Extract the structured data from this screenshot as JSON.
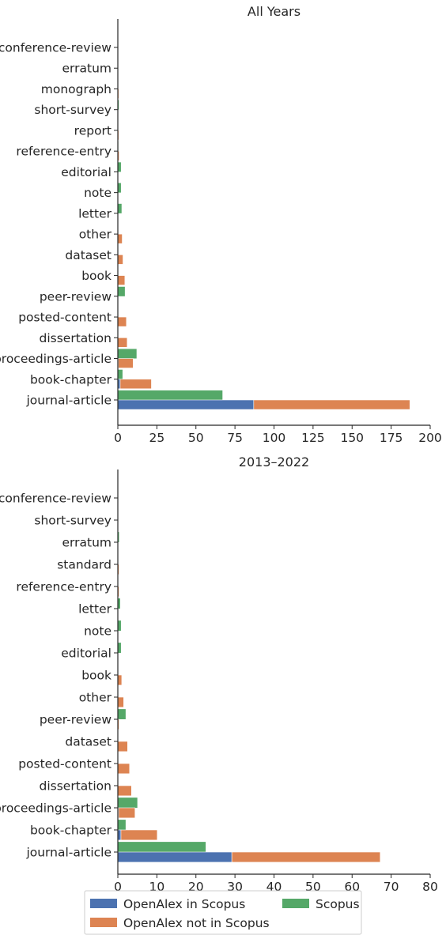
{
  "colors": {
    "openalex_in_scopus": "#4c72b0",
    "openalex_not_in_scopus": "#dd8452",
    "scopus": "#55a868",
    "axis": "#262626"
  },
  "legend": {
    "placement": "bottom",
    "items": [
      {
        "label": "OpenAlex in Scopus",
        "color": "#4c72b0"
      },
      {
        "label": "OpenAlex not in Scopus",
        "color": "#dd8452"
      },
      {
        "label": "Scopus",
        "color": "#55a868"
      }
    ]
  },
  "chart_data": [
    {
      "type": "bar",
      "orientation": "horizontal",
      "stacked_openalex": true,
      "title": "All Years",
      "xlim": [
        0,
        200
      ],
      "xticks": [
        0,
        25,
        50,
        75,
        100,
        125,
        150,
        175,
        200
      ],
      "categories": [
        "conference-review",
        "erratum",
        "monograph",
        "short-survey",
        "report",
        "reference-entry",
        "editorial",
        "note",
        "letter",
        "other",
        "dataset",
        "book",
        "peer-review",
        "posted-content",
        "dissertation",
        "proceedings-article",
        "book-chapter",
        "journal-article"
      ],
      "series": [
        {
          "name": "Scopus",
          "key": "scopus",
          "values": [
            0.2,
            0.2,
            0,
            0.6,
            0,
            0.3,
            2.0,
            2.0,
            2.4,
            0,
            0,
            0,
            4.5,
            0,
            0,
            12.0,
            3.0,
            67.0
          ]
        },
        {
          "name": "OpenAlex in Scopus",
          "key": "openalex_in_scopus",
          "values": [
            0,
            0,
            0,
            0,
            0,
            0,
            0,
            0,
            0,
            0,
            0,
            0,
            0,
            0,
            0,
            0.3,
            1.5,
            87.0
          ]
        },
        {
          "name": "OpenAlex not in Scopus",
          "key": "openalex_not_in_scopus",
          "values": [
            0,
            0,
            0.6,
            0,
            0.6,
            0.8,
            0,
            0,
            0,
            2.8,
            3.3,
            4.5,
            0,
            5.5,
            6.0,
            9.5,
            20.0,
            100.0
          ]
        }
      ]
    },
    {
      "type": "bar",
      "orientation": "horizontal",
      "stacked_openalex": true,
      "title": "2013–2022",
      "xlim": [
        0,
        80
      ],
      "xticks": [
        0,
        10,
        20,
        30,
        40,
        50,
        60,
        70,
        80
      ],
      "categories": [
        "conference-review",
        "short-survey",
        "erratum",
        "standard",
        "reference-entry",
        "letter",
        "note",
        "editorial",
        "book",
        "other",
        "peer-review",
        "dataset",
        "posted-content",
        "dissertation",
        "proceedings-article",
        "book-chapter",
        "journal-article"
      ],
      "series": [
        {
          "name": "Scopus",
          "key": "scopus",
          "values": [
            0.1,
            0.1,
            0.3,
            0,
            0,
            0.6,
            0.8,
            0.8,
            0,
            0,
            2.0,
            0,
            0,
            0,
            5.0,
            2.0,
            22.5
          ]
        },
        {
          "name": "OpenAlex in Scopus",
          "key": "openalex_in_scopus",
          "values": [
            0,
            0,
            0,
            0,
            0,
            0,
            0,
            0,
            0,
            0,
            0,
            0,
            0,
            0,
            0.2,
            0.8,
            29.2
          ]
        },
        {
          "name": "OpenAlex not in Scopus",
          "key": "openalex_not_in_scopus",
          "values": [
            0,
            0,
            0,
            0.3,
            0.3,
            0,
            0,
            0,
            1.0,
            1.5,
            0.3,
            2.5,
            3.0,
            3.5,
            4.2,
            9.3,
            38.0
          ]
        }
      ]
    }
  ]
}
